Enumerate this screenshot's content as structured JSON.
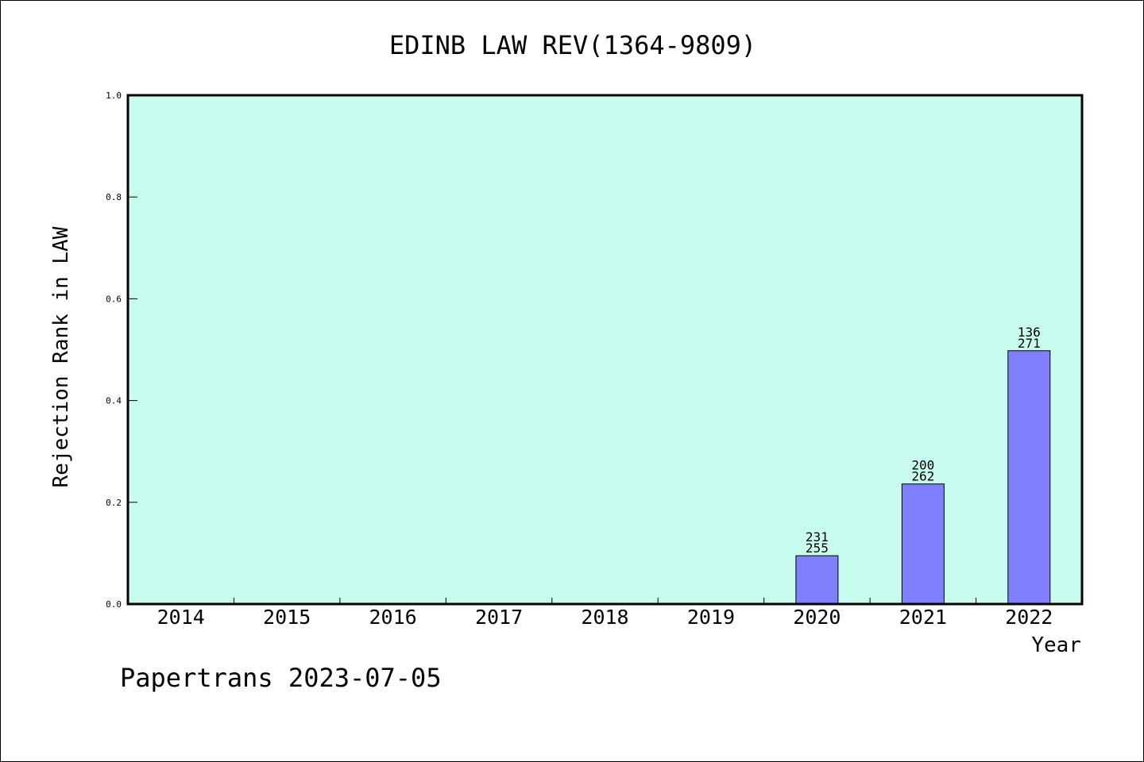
{
  "chart_data": {
    "type": "bar",
    "title": "EDINB LAW REV(1364-9809)",
    "xlabel": "Year",
    "ylabel": "Rejection Rank in LAW",
    "categories": [
      "2014",
      "2015",
      "2016",
      "2017",
      "2018",
      "2019",
      "2020",
      "2021",
      "2022"
    ],
    "values": [
      null,
      null,
      null,
      null,
      null,
      null,
      0.095,
      0.236,
      0.498
    ],
    "bar_labels": [
      null,
      null,
      null,
      null,
      null,
      null,
      {
        "top": "231",
        "bottom": "255"
      },
      {
        "top": "200",
        "bottom": "262"
      },
      {
        "top": "136",
        "bottom": "271"
      }
    ],
    "ylim": [
      0,
      1.0
    ],
    "yticks": [
      "0.0",
      "0.2",
      "0.4",
      "0.6",
      "0.8",
      "1.0"
    ],
    "grid": false,
    "colors": {
      "plot_background": "#c8fcee",
      "bar_fill": "#8080ff",
      "bar_stroke": "#000000"
    }
  },
  "footer": {
    "text": "Papertrans 2023-07-05"
  }
}
